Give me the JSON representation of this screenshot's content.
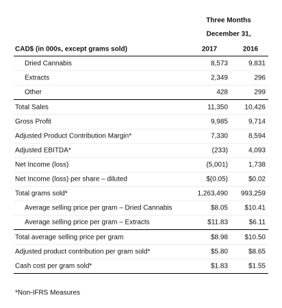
{
  "header": {
    "period": "Three Months",
    "date": "December 31,"
  },
  "table": {
    "columns": [
      "CAD$ (in 000s, except grams sold)",
      "2017",
      "2016"
    ],
    "rows": [
      [
        "Dried Cannabis",
        "8,573",
        "9,831"
      ],
      [
        "Extracts",
        "2,349",
        "296"
      ],
      [
        "Other",
        "428",
        "299"
      ],
      [
        "Total Sales",
        "11,350",
        "10,426"
      ],
      [
        "Gross Profit",
        "9,985",
        "9,714"
      ],
      [
        "Adjusted Product Contribution Margin*",
        "7,330",
        "8,594"
      ],
      [
        "Adjusted EBITDA*",
        "(233)",
        "4,093"
      ],
      [
        "Net Income (loss)",
        "(5,001)",
        "1,738"
      ],
      [
        "Net Income (loss) per share – diluted",
        "$(0.05)",
        "$0.02"
      ],
      [
        "Total grams sold*",
        "1,263,490",
        "993,259"
      ],
      [
        "Average selling price per gram – Dried Cannabis",
        "$8.05",
        "$10.41"
      ],
      [
        "Average selling price per gram – Extracts",
        "$11.83",
        "$6.11"
      ],
      [
        "Total average selling price per gram",
        "$8.98",
        "$10.50"
      ],
      [
        "Adjusted product contribution per gram sold*",
        "$5.80",
        "$8.65"
      ],
      [
        "Cash cost per gram sold*",
        "$1.83",
        "$1.55"
      ]
    ]
  },
  "footnote": "*Non-IFRS Measures"
}
